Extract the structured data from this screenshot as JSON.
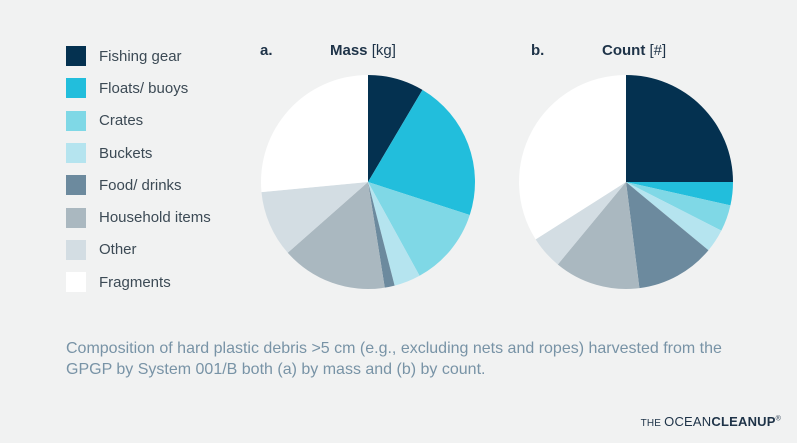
{
  "legend": [
    {
      "label": "Fishing gear",
      "color": "#043150"
    },
    {
      "label": "Floats/ buoys",
      "color": "#22bedc"
    },
    {
      "label": "Crates",
      "color": "#7fd8e6"
    },
    {
      "label": "Buckets",
      "color": "#b5e4ef"
    },
    {
      "label": "Food/ drinks",
      "color": "#6c8a9e"
    },
    {
      "label": "Household items",
      "color": "#aab8c0"
    },
    {
      "label": "Other",
      "color": "#d3dde3"
    },
    {
      "label": "Fragments",
      "color": "#ffffff"
    }
  ],
  "chart_data": [
    {
      "type": "pie",
      "panel": "a.",
      "title_bold": "Mass",
      "title_rest": " [kg]",
      "labels": [
        "Fishing gear",
        "Floats/ buoys",
        "Crates",
        "Buckets",
        "Food/ drinks",
        "Household items",
        "Other",
        "Fragments"
      ],
      "values": [
        8.5,
        21.5,
        12,
        4,
        1.5,
        16,
        10,
        26.5
      ],
      "colors": [
        "#043150",
        "#22bedc",
        "#7fd8e6",
        "#b5e4ef",
        "#6c8a9e",
        "#aab8c0",
        "#d3dde3",
        "#ffffff"
      ]
    },
    {
      "type": "pie",
      "panel": "b.",
      "title_bold": "Count",
      "title_rest": " [#]",
      "labels": [
        "Fishing gear",
        "Floats/ buoys",
        "Crates",
        "Buckets",
        "Food/ drinks",
        "Household items",
        "Other",
        "Fragments"
      ],
      "values": [
        25,
        3.5,
        4,
        3.5,
        12,
        13,
        5,
        34
      ],
      "colors": [
        "#043150",
        "#22bedc",
        "#7fd8e6",
        "#b5e4ef",
        "#6c8a9e",
        "#aab8c0",
        "#d3dde3",
        "#ffffff"
      ]
    }
  ],
  "caption": "Composition of hard plastic debris >5 cm (e.g., excluding nets and ropes) harvested from the GPGP by System 001/B both (a) by mass and (b) by count.",
  "logo": {
    "the": "THE ",
    "ocean": "OCEAN",
    "cleanup": "CLEANUP",
    "reg": "®"
  }
}
